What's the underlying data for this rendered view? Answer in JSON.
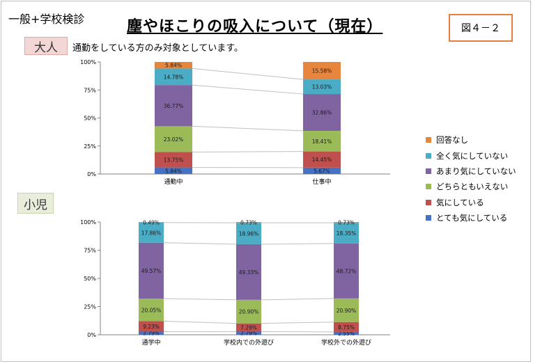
{
  "header": {
    "exam_label": "一般+学校検診",
    "title": "塵やほこりの吸入について（現在）",
    "figure_label": "図４－２"
  },
  "adult_section": {
    "label": "大人",
    "note": "通勤をしている方のみ対象としています。"
  },
  "child_section": {
    "label": "小児"
  },
  "colors": {
    "とても気にしている": "#4472c4",
    "気にしている": "#c0504d",
    "どちらともいえない": "#9bbb59",
    "あまり気にしていない": "#8064a2",
    "全く気にしていない": "#4bacc6",
    "回答なし": "#e8853c"
  },
  "chart_data": [
    {
      "type": "bar",
      "stacked": "percent",
      "categories": [
        "通勤中",
        "仕事中"
      ],
      "yticks": [
        "0%",
        "25%",
        "50%",
        "75%",
        "100%"
      ],
      "ylim": [
        0,
        100
      ],
      "series": [
        {
          "name": "とても気にしている",
          "values": [
            5.84,
            5.67
          ],
          "labels": [
            "5.84%",
            "5.67%"
          ]
        },
        {
          "name": "気にしている",
          "values": [
            13.75,
            14.45
          ],
          "labels": [
            "13.75%",
            "14.45%"
          ]
        },
        {
          "name": "どちらともいえない",
          "values": [
            23.02,
            18.41
          ],
          "labels": [
            "23.02%",
            "18.41%"
          ]
        },
        {
          "name": "あまり気にしていない",
          "values": [
            36.77,
            32.86
          ],
          "labels": [
            "36.77%",
            "32.86%"
          ]
        },
        {
          "name": "全く気にしていない",
          "values": [
            14.78,
            13.03
          ],
          "labels": [
            "14.78%",
            "13.03%"
          ]
        },
        {
          "name": "回答なし",
          "values": [
            5.84,
            15.58
          ],
          "labels": [
            "5.84%",
            "15.58%"
          ]
        }
      ]
    },
    {
      "type": "bar",
      "stacked": "percent",
      "categories": [
        "通学中",
        "学校内での外遊び",
        "学校外での外遊び"
      ],
      "yticks": [
        "0%",
        "25%",
        "50%",
        "75%",
        "100%"
      ],
      "ylim": [
        0,
        100
      ],
      "series": [
        {
          "name": "とても気にしている",
          "values": [
            2.79,
            2.79,
            2.55
          ],
          "labels": [
            "2.79%",
            "2.79%",
            "2.55%"
          ]
        },
        {
          "name": "気にしている",
          "values": [
            9.23,
            7.29,
            8.75
          ],
          "labels": [
            "9.23%",
            "7.29%",
            "8.75%"
          ]
        },
        {
          "name": "どちらともいえない",
          "values": [
            20.05,
            20.9,
            20.9
          ],
          "labels": [
            "20.05%",
            "20.90%",
            "20.90%"
          ]
        },
        {
          "name": "あまり気にしていない",
          "values": [
            49.57,
            49.33,
            48.72
          ],
          "labels": [
            "49.57%",
            "49.33%",
            "48.72%"
          ]
        },
        {
          "name": "全く気にしていない",
          "values": [
            17.86,
            18.96,
            18.35
          ],
          "labels": [
            "17.86%",
            "18.96%",
            "18.35%"
          ]
        },
        {
          "name": "回答なし",
          "values": [
            0.49,
            0.73,
            0.73
          ],
          "labels": [
            "0.49%",
            "0.73%",
            "0.73%"
          ]
        }
      ]
    }
  ],
  "legend": {
    "placement": "right",
    "items": [
      "回答なし",
      "全く気にしていない",
      "あまり気にしていない",
      "どちらともいえない",
      "気にしている",
      "とても気にしている"
    ]
  }
}
